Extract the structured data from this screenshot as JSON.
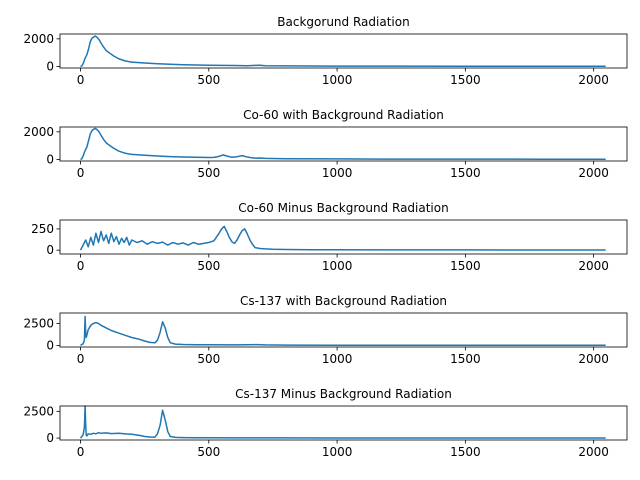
{
  "colors": {
    "series": "#1f77b4",
    "frame": "#000000",
    "background": "#ffffff"
  },
  "chart_data": [
    {
      "type": "line",
      "title": "Backgorund Radiation",
      "xlim": [
        -80,
        2130
      ],
      "ylim": [
        -110,
        2350
      ],
      "xticks": [
        0,
        500,
        1000,
        1500,
        2000
      ],
      "yticks": [
        0,
        2000
      ],
      "grid": false,
      "series": [
        {
          "x": [
            0,
            5,
            10,
            18,
            25,
            32,
            38,
            45,
            52,
            58,
            65,
            72,
            80,
            90,
            100,
            115,
            130,
            150,
            175,
            200,
            250,
            300,
            350,
            400,
            450,
            500,
            550,
            600,
            650,
            680,
            700,
            720,
            800,
            1000,
            1200,
            1500,
            1800,
            2047
          ],
          "y": [
            0,
            40,
            200,
            600,
            850,
            1300,
            1800,
            2050,
            2150,
            2200,
            2100,
            1950,
            1700,
            1400,
            1150,
            950,
            750,
            550,
            400,
            320,
            250,
            200,
            160,
            130,
            110,
            95,
            80,
            70,
            60,
            80,
            90,
            60,
            45,
            30,
            25,
            20,
            15,
            10
          ]
        }
      ]
    },
    {
      "type": "line",
      "title": "Co-60 with Background Radiation",
      "xlim": [
        -80,
        2130
      ],
      "ylim": [
        -110,
        2350
      ],
      "xticks": [
        0,
        500,
        1000,
        1500,
        2000
      ],
      "yticks": [
        0,
        2000
      ],
      "grid": false,
      "series": [
        {
          "x": [
            0,
            5,
            10,
            18,
            25,
            32,
            38,
            45,
            52,
            58,
            65,
            72,
            80,
            90,
            100,
            115,
            130,
            150,
            175,
            200,
            250,
            300,
            350,
            400,
            450,
            500,
            520,
            540,
            555,
            570,
            590,
            610,
            630,
            645,
            660,
            680,
            700,
            720,
            800,
            1000,
            1200,
            1500,
            1800,
            2047
          ],
          "y": [
            0,
            50,
            250,
            650,
            900,
            1400,
            1850,
            2100,
            2200,
            2250,
            2150,
            2000,
            1750,
            1450,
            1200,
            1000,
            800,
            600,
            450,
            370,
            300,
            250,
            210,
            180,
            160,
            140,
            150,
            220,
            330,
            250,
            160,
            200,
            280,
            200,
            140,
            100,
            110,
            80,
            60,
            40,
            30,
            25,
            20,
            15
          ]
        }
      ]
    },
    {
      "type": "line",
      "title": "Co-60 Minus Background Radiation",
      "xlim": [
        -80,
        2130
      ],
      "ylim": [
        -45,
        355
      ],
      "xticks": [
        0,
        500,
        1000,
        1500,
        2000
      ],
      "yticks": [
        0,
        250
      ],
      "grid": false,
      "series": [
        {
          "x": [
            0,
            10,
            20,
            30,
            40,
            50,
            60,
            70,
            80,
            90,
            100,
            110,
            120,
            130,
            140,
            150,
            160,
            170,
            180,
            190,
            200,
            220,
            240,
            260,
            280,
            300,
            320,
            340,
            360,
            380,
            400,
            420,
            440,
            460,
            480,
            500,
            520,
            540,
            550,
            560,
            570,
            580,
            590,
            600,
            610,
            620,
            630,
            640,
            650,
            660,
            670,
            680,
            700,
            720,
            750,
            800,
            900,
            1000,
            1200,
            1500,
            1800,
            2047
          ],
          "y": [
            0,
            60,
            120,
            40,
            150,
            60,
            200,
            90,
            220,
            110,
            180,
            80,
            200,
            100,
            160,
            70,
            140,
            90,
            150,
            60,
            120,
            90,
            110,
            70,
            100,
            80,
            95,
            60,
            90,
            70,
            85,
            60,
            90,
            70,
            80,
            90,
            110,
            200,
            250,
            280,
            220,
            150,
            100,
            80,
            120,
            180,
            230,
            250,
            190,
            120,
            70,
            30,
            20,
            15,
            10,
            8,
            5,
            5,
            3,
            3,
            2,
            2
          ]
        }
      ]
    },
    {
      "type": "line",
      "title": "Cs-137 with Background Radiation",
      "xlim": [
        -80,
        2130
      ],
      "ylim": [
        -180,
        3700
      ],
      "xticks": [
        0,
        500,
        1000,
        1500,
        2000
      ],
      "yticks": [
        0,
        2500
      ],
      "grid": false,
      "series": [
        {
          "x": [
            0,
            10,
            15,
            18,
            20,
            22,
            25,
            30,
            40,
            50,
            60,
            70,
            80,
            100,
            120,
            150,
            180,
            200,
            230,
            250,
            270,
            290,
            300,
            310,
            320,
            330,
            340,
            350,
            370,
            400,
            450,
            500,
            600,
            650,
            690,
            720,
            800,
            1000,
            1200,
            1500,
            1800,
            2047
          ],
          "y": [
            0,
            200,
            600,
            3300,
            1400,
            900,
            1200,
            1800,
            2300,
            2500,
            2600,
            2500,
            2300,
            2000,
            1700,
            1400,
            1100,
            900,
            700,
            500,
            350,
            300,
            600,
            1500,
            2700,
            2000,
            900,
            300,
            150,
            100,
            80,
            70,
            60,
            70,
            90,
            60,
            40,
            30,
            25,
            20,
            15,
            10
          ]
        }
      ]
    },
    {
      "type": "line",
      "title": "Cs-137 Minus Background Radiation",
      "xlim": [
        -80,
        2130
      ],
      "ylim": [
        -180,
        3000
      ],
      "xticks": [
        0,
        500,
        1000,
        1500,
        2000
      ],
      "yticks": [
        0,
        2500
      ],
      "grid": false,
      "series": [
        {
          "x": [
            0,
            10,
            15,
            18,
            20,
            22,
            25,
            30,
            40,
            50,
            60,
            70,
            80,
            100,
            120,
            150,
            180,
            200,
            230,
            250,
            270,
            290,
            300,
            310,
            320,
            330,
            340,
            350,
            370,
            400,
            450,
            500,
            600,
            700,
            800,
            1000,
            1200,
            1500,
            1800,
            2047
          ],
          "y": [
            0,
            300,
            1000,
            3000,
            1200,
            300,
            200,
            400,
            350,
            450,
            400,
            500,
            450,
            480,
            420,
            450,
            380,
            350,
            250,
            150,
            100,
            80,
            400,
            1200,
            2600,
            1700,
            600,
            150,
            60,
            40,
            30,
            25,
            20,
            15,
            12,
            10,
            8,
            6,
            5,
            5
          ]
        }
      ]
    }
  ]
}
